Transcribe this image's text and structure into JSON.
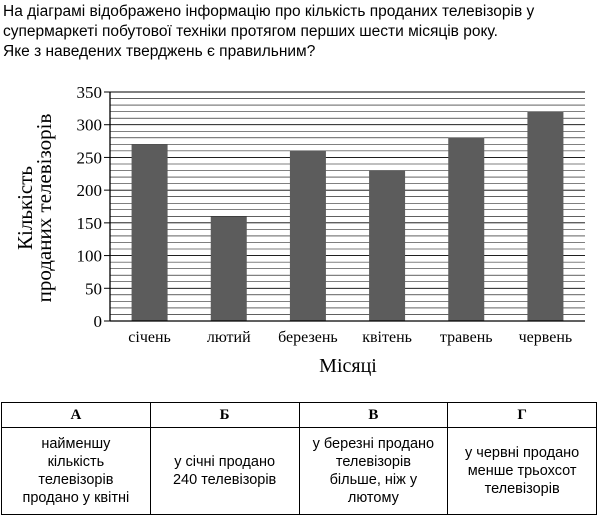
{
  "question": {
    "lines": [
      "На діаграмі відображено інформацію про кількість проданих телевізорів у",
      "супермаркеті побутової техніки протягом перших шести місяців року.",
      "Яке з наведених тверджень є правильним?"
    ]
  },
  "chart_data": {
    "type": "bar",
    "categories": [
      "січень",
      "лютий",
      "березень",
      "квітень",
      "травень",
      "червень"
    ],
    "values": [
      270,
      160,
      260,
      230,
      280,
      320
    ],
    "xlabel": "Місяці",
    "ylabel_lines": [
      "Кількість",
      "проданих телевізорів"
    ],
    "ylim": [
      0,
      350
    ],
    "yticks": [
      0,
      50,
      100,
      150,
      200,
      250,
      300,
      350
    ],
    "grid": true,
    "bar_color": "#5c5c5c",
    "grid_color": "#000000"
  },
  "answers": {
    "headers": [
      "А",
      "Б",
      "В",
      "Г"
    ],
    "options": [
      [
        "найменшу",
        "кількість",
        "телевізорів",
        "продано у квітні"
      ],
      [
        "у січні продано",
        "240 телевізорів"
      ],
      [
        "у березні продано",
        "телевізорів",
        "більше, ніж у",
        "лютому"
      ],
      [
        "у червні продано",
        "менше трьохсот",
        "телевізорів"
      ]
    ]
  }
}
